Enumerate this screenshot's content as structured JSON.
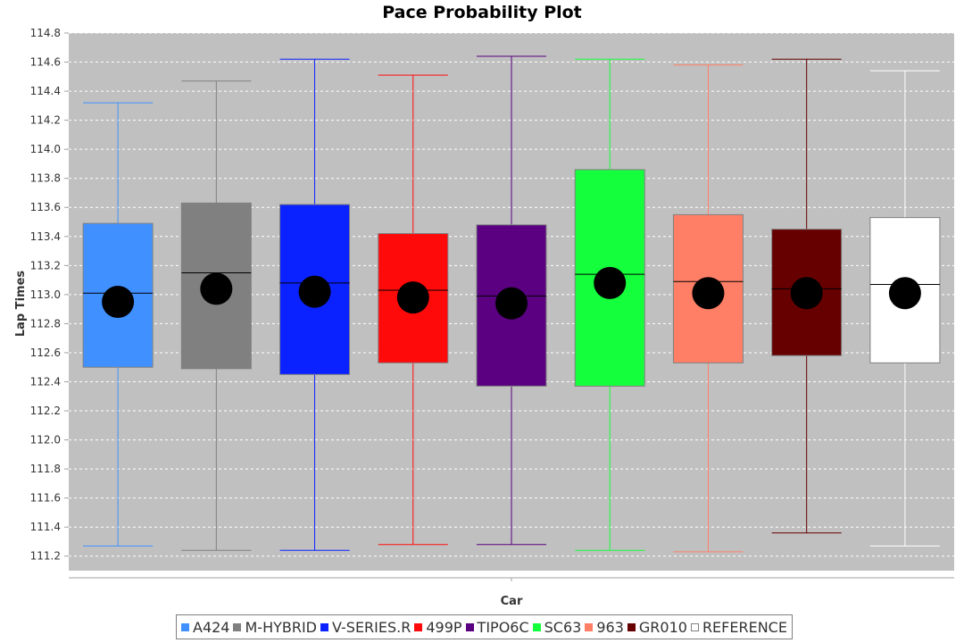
{
  "chart_data": {
    "type": "box",
    "title": "Pace Probability Plot",
    "xlabel": "Car",
    "ylabel": "Lap Times",
    "ylim": [
      111.1,
      114.8
    ],
    "yticks": [
      111.2,
      111.4,
      111.6,
      111.8,
      112.0,
      112.2,
      112.4,
      112.6,
      112.8,
      113.0,
      113.2,
      113.4,
      113.6,
      113.8,
      114.0,
      114.2,
      114.4,
      114.6,
      114.8
    ],
    "grid": true,
    "legend_position": "bottom",
    "categories": [
      "A424",
      "M-HYBRID",
      "V-SERIES.R",
      "499P",
      "TIPO6C",
      "SC63",
      "963",
      "GR010",
      "REFERENCE"
    ],
    "series": [
      {
        "name": "A424",
        "color": "#4090ff",
        "min": 111.27,
        "q1": 112.5,
        "median": 113.01,
        "q3": 113.49,
        "max": 114.32,
        "mean": 112.95
      },
      {
        "name": "M-HYBRID",
        "color": "#808080",
        "min": 111.24,
        "q1": 112.49,
        "median": 113.15,
        "q3": 113.63,
        "max": 114.47,
        "mean": 113.04
      },
      {
        "name": "V-SERIES.R",
        "color": "#0a22ff",
        "min": 111.24,
        "q1": 112.45,
        "median": 113.08,
        "q3": 113.62,
        "max": 114.62,
        "mean": 113.02
      },
      {
        "name": "499P",
        "color": "#ff0a0a",
        "min": 111.28,
        "q1": 112.53,
        "median": 113.03,
        "q3": 113.42,
        "max": 114.51,
        "mean": 112.98
      },
      {
        "name": "TIPO6C",
        "color": "#5a0080",
        "min": 111.28,
        "q1": 112.37,
        "median": 112.99,
        "q3": 113.48,
        "max": 114.64,
        "mean": 112.94
      },
      {
        "name": "SC63",
        "color": "#14ff3c",
        "min": 111.24,
        "q1": 112.37,
        "median": 113.14,
        "q3": 113.86,
        "max": 114.62,
        "mean": 113.08
      },
      {
        "name": "963",
        "color": "#ff7f66",
        "min": 111.23,
        "q1": 112.53,
        "median": 113.09,
        "q3": 113.55,
        "max": 114.58,
        "mean": 113.01
      },
      {
        "name": "GR010",
        "color": "#660000",
        "min": 111.36,
        "q1": 112.58,
        "median": 113.04,
        "q3": 113.45,
        "max": 114.62,
        "mean": 113.01
      },
      {
        "name": "REFERENCE",
        "color": "#ffffff",
        "min": 111.27,
        "q1": 112.53,
        "median": 113.07,
        "q3": 113.53,
        "max": 114.54,
        "mean": 113.01
      }
    ]
  },
  "colors": {
    "plot_background": "#c0c0c0",
    "gridline": "#ffffff",
    "mean_marker": "#000000"
  }
}
